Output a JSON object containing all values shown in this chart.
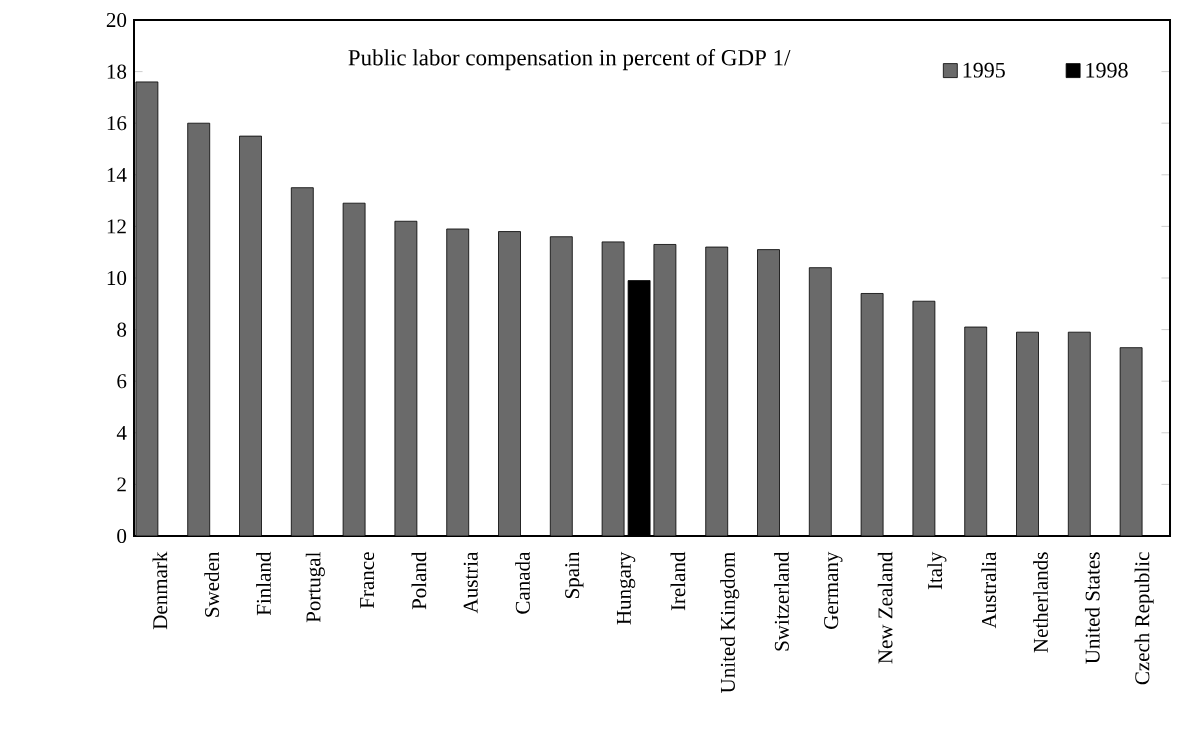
{
  "chart_data": {
    "type": "bar",
    "title": "Public labor compensation in percent of GDP 1/",
    "categories": [
      "Denmark",
      "Sweden",
      "Finland",
      "Portugal",
      "France",
      "Poland",
      "Austria",
      "Canada",
      "Spain",
      "Hungary",
      "Ireland",
      "United Kingdom",
      "Switzerland",
      "Germany",
      "New Zealand",
      "Italy",
      "Australia",
      "Netherlands",
      "United States",
      "Czech Republic"
    ],
    "series": [
      {
        "name": "1995",
        "color": "#6a6a6a",
        "values": [
          17.6,
          16.0,
          15.5,
          13.5,
          12.9,
          12.2,
          11.9,
          11.8,
          11.6,
          11.4,
          11.3,
          11.2,
          11.1,
          10.4,
          9.4,
          9.1,
          8.1,
          7.9,
          7.9,
          7.3
        ]
      },
      {
        "name": "1998",
        "color": "#000000",
        "values": [
          null,
          null,
          null,
          null,
          null,
          null,
          null,
          null,
          null,
          9.9,
          null,
          null,
          null,
          null,
          null,
          null,
          null,
          null,
          null,
          null
        ]
      }
    ],
    "ylim": [
      0,
      20
    ],
    "yticks": [
      0,
      2,
      4,
      6,
      8,
      10,
      12,
      14,
      16,
      18,
      20
    ],
    "grid": false,
    "legend": "top right"
  }
}
